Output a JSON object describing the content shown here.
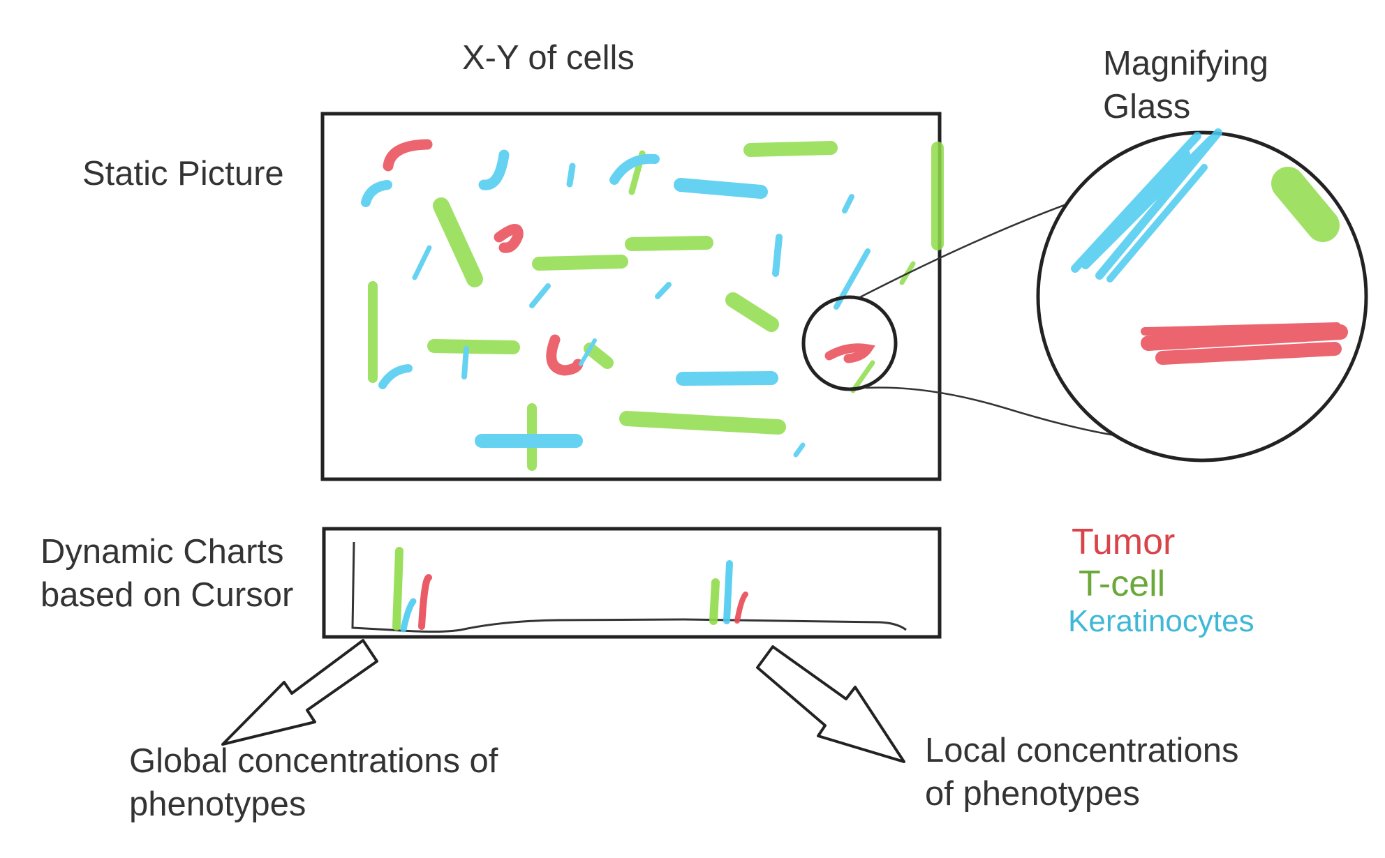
{
  "labels": {
    "title": "X-Y of cells",
    "magnifier_title": "Magnifying\nGlass",
    "static_picture": "Static Picture",
    "dynamic_charts": "Dynamic Charts\nbased on Cursor",
    "global_conc": "Global concentrations of\nphenotypes",
    "local_conc": "Local concentrations\nof phenotypes"
  },
  "legend": [
    {
      "label": "Tumor",
      "color": "#d9434a"
    },
    {
      "label": "T-cell",
      "color": "#6aa83a"
    },
    {
      "label": "Keratinocytes",
      "color": "#3fb7d6"
    }
  ],
  "colors": {
    "tumor": "#e84a55",
    "tcell": "#8fdc4a",
    "keratinocytes": "#4ccbf0",
    "stroke": "#222222"
  }
}
